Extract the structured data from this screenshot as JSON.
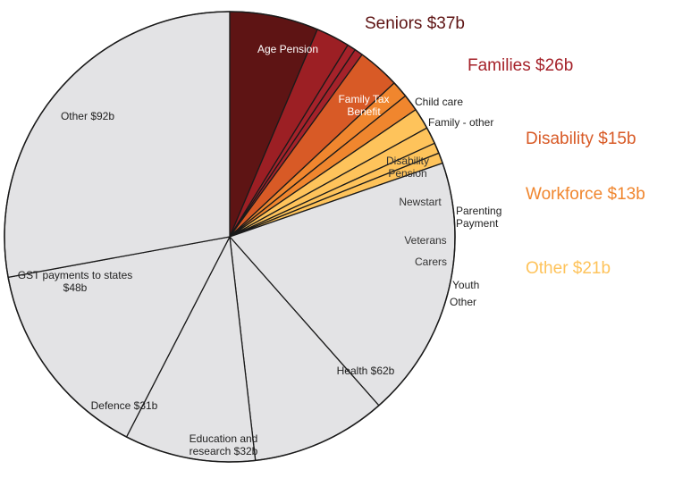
{
  "chart_data": {
    "type": "pie",
    "slices": [
      {
        "label": "Age Pension",
        "value": 21.0,
        "color": "#5e1414",
        "label_color": "#ffffff"
      },
      {
        "label": "Family Tax Benefit",
        "value": 8.0,
        "color": "#9c1f24",
        "label_color": "#ffffff"
      },
      {
        "label": "Child care",
        "value": 2.0,
        "color": "#a5222a",
        "label_color": "#222222"
      },
      {
        "label": "Family - other",
        "value": 2.0,
        "color": "#a5222a",
        "label_color": "#222222"
      },
      {
        "label": "Disability Pension",
        "value": 10.0,
        "color": "#d85a26",
        "label_color": "#333333"
      },
      {
        "label": "Newstart",
        "value": 4.0,
        "color": "#f0862e",
        "label_color": "#333333"
      },
      {
        "label": "Parenting Payment",
        "value": 4.0,
        "color": "#f0862e",
        "label_color": "#222222"
      },
      {
        "label": "Veterans",
        "value": 5.0,
        "color": "#fec35b",
        "label_color": "#333333"
      },
      {
        "label": "Carers",
        "value": 4.0,
        "color": "#fec35b",
        "label_color": "#333333"
      },
      {
        "label": "Youth",
        "value": 2.5,
        "color": "#fec35b",
        "label_color": "#222222"
      },
      {
        "label": "Other",
        "value": 2.5,
        "color": "#fec35b",
        "label_color": "#222222"
      },
      {
        "label": "Health $62b",
        "value": 62,
        "color": "#e3e3e5",
        "label_color": "#222222"
      },
      {
        "label": "Education and research $32b",
        "value": 32,
        "color": "#e3e3e5",
        "label_color": "#222222"
      },
      {
        "label": "Defence $31b",
        "value": 31,
        "color": "#e3e3e5",
        "label_color": "#222222"
      },
      {
        "label": "GST payments to states $48b",
        "value": 48,
        "color": "#e3e3e5",
        "label_color": "#222222"
      },
      {
        "label": "Other $92b",
        "value": 92,
        "color": "#e3e3e5",
        "label_color": "#222222"
      }
    ],
    "groups": [
      {
        "label": "Seniors $37b",
        "color": "#5e1414"
      },
      {
        "label": "Families $26b",
        "color": "#a5222a"
      },
      {
        "label": "Disability $15b",
        "color": "#d85a26"
      },
      {
        "label": "Workforce $13b",
        "color": "#f0862e"
      },
      {
        "label": "Other $21b",
        "color": "#fec35b"
      }
    ]
  }
}
